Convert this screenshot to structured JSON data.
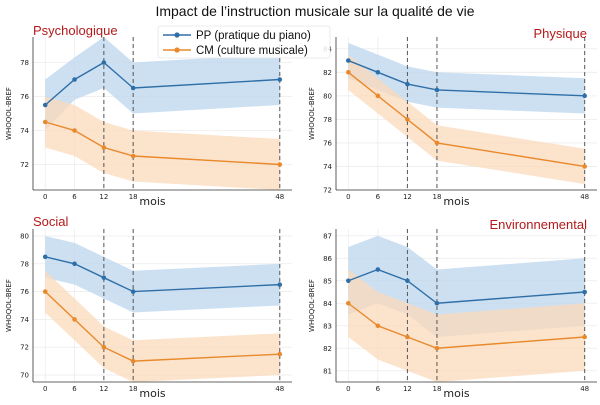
{
  "title": "Impact de l’instruction musicale sur la qualité de vie",
  "colors": {
    "pp": "#2f6fa7",
    "pp_band": "#bcd6ee",
    "cm": "#e8892c",
    "cm_band": "#fbd9bb",
    "panel_title": "#b51a1a",
    "vline": "#555555"
  },
  "legend": [
    {
      "key": "pp",
      "label": "PP (pratique du piano)"
    },
    {
      "key": "cm",
      "label": "CM (culture musicale)"
    }
  ],
  "chart_data": [
    {
      "type": "line",
      "title": "Psychologique",
      "xlabel": "mois",
      "ylabel": "WHOQOL-BREF",
      "x": [
        0,
        6,
        12,
        18,
        48
      ],
      "vlines": [
        12,
        18,
        48
      ],
      "ylim": [
        70.5,
        79.5
      ],
      "yticks": [
        72,
        74,
        76,
        78
      ],
      "series": [
        {
          "key": "pp",
          "name": "PP (pratique du piano)",
          "values": [
            75.5,
            77.0,
            78.0,
            76.5,
            77.0
          ],
          "lower": [
            74.0,
            75.8,
            76.5,
            75.0,
            75.5
          ],
          "upper": [
            77.0,
            78.3,
            79.5,
            78.0,
            78.5
          ]
        },
        {
          "key": "cm",
          "name": "CM (culture musicale)",
          "values": [
            74.5,
            74.0,
            73.0,
            72.5,
            72.0
          ],
          "lower": [
            73.0,
            72.5,
            71.5,
            71.0,
            70.5
          ],
          "upper": [
            76.0,
            75.5,
            74.5,
            74.0,
            73.5
          ]
        }
      ]
    },
    {
      "type": "line",
      "title": "Physique",
      "xlabel": "mois",
      "ylabel": "WHOQOL-BREF",
      "x": [
        0,
        6,
        12,
        18,
        48
      ],
      "vlines": [
        12,
        18,
        48
      ],
      "ylim": [
        72,
        85
      ],
      "yticks": [
        72,
        74,
        76,
        78,
        80,
        82,
        84
      ],
      "series": [
        {
          "key": "pp",
          "name": "PP (pratique du piano)",
          "values": [
            83.0,
            82.0,
            81.0,
            80.5,
            80.0
          ],
          "lower": [
            81.5,
            80.5,
            79.5,
            79.0,
            78.5
          ],
          "upper": [
            84.5,
            83.5,
            82.5,
            82.0,
            81.5
          ]
        },
        {
          "key": "cm",
          "name": "CM (culture musicale)",
          "values": [
            82.0,
            80.0,
            78.0,
            76.0,
            74.0
          ],
          "lower": [
            80.5,
            78.5,
            76.5,
            74.5,
            72.5
          ],
          "upper": [
            83.5,
            81.5,
            79.5,
            77.5,
            75.5
          ]
        }
      ]
    },
    {
      "type": "line",
      "title": "Social",
      "xlabel": "mois",
      "ylabel": "WHOQOL-BREF",
      "x": [
        0,
        6,
        12,
        18,
        48
      ],
      "vlines": [
        12,
        18,
        48
      ],
      "ylim": [
        69.5,
        80.5
      ],
      "yticks": [
        70,
        72,
        74,
        76,
        78,
        80
      ],
      "series": [
        {
          "key": "pp",
          "name": "PP (pratique du piano)",
          "values": [
            78.5,
            78.0,
            77.0,
            76.0,
            76.5
          ],
          "lower": [
            77.0,
            76.5,
            75.5,
            74.5,
            75.0
          ],
          "upper": [
            80.0,
            79.5,
            78.5,
            77.5,
            78.0
          ]
        },
        {
          "key": "cm",
          "name": "CM (culture musicale)",
          "values": [
            76.0,
            74.0,
            72.0,
            71.0,
            71.5
          ],
          "lower": [
            74.5,
            72.5,
            70.5,
            69.5,
            70.0
          ],
          "upper": [
            77.5,
            75.5,
            73.5,
            72.5,
            73.0
          ]
        }
      ]
    },
    {
      "type": "line",
      "title": "Environnemental",
      "xlabel": "mois",
      "ylabel": "WHOQOL-BREF",
      "x": [
        0,
        6,
        12,
        18,
        48
      ],
      "vlines": [
        12,
        18,
        48
      ],
      "ylim": [
        80.5,
        87.3
      ],
      "yticks": [
        81,
        82,
        83,
        84,
        85,
        86,
        87
      ],
      "series": [
        {
          "key": "pp",
          "name": "PP (pratique du piano)",
          "values": [
            85.0,
            85.5,
            85.0,
            84.0,
            84.5
          ],
          "lower": [
            83.5,
            84.0,
            83.5,
            82.5,
            83.0
          ],
          "upper": [
            86.5,
            87.0,
            86.5,
            85.5,
            86.0
          ]
        },
        {
          "key": "cm",
          "name": "CM (culture musicale)",
          "values": [
            84.0,
            83.0,
            82.5,
            82.0,
            82.5
          ],
          "lower": [
            82.5,
            81.5,
            81.0,
            80.5,
            81.0
          ],
          "upper": [
            85.5,
            84.5,
            84.0,
            83.5,
            84.0
          ]
        }
      ]
    }
  ]
}
